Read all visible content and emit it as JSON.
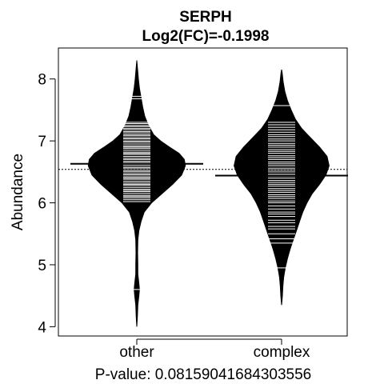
{
  "chart_data": {
    "type": "beanplot",
    "title": "SERPH",
    "subtitle": "Log2(FC)=-0.1998",
    "ylabel": "Abundance",
    "xlabel": "P-value: 0.08159041684303556",
    "ylim": [
      3.85,
      8.5
    ],
    "yticks": [
      "4",
      "5",
      "6",
      "7",
      "8"
    ],
    "overall_mean": 6.54,
    "categories": [
      "other",
      "complex"
    ],
    "groups": [
      {
        "name": "other",
        "mean": 6.63,
        "density": [
          [
            4.0,
            0.0
          ],
          [
            4.15,
            0.01
          ],
          [
            4.35,
            0.02
          ],
          [
            4.5,
            0.04
          ],
          [
            4.6,
            0.05
          ],
          [
            4.7,
            0.04
          ],
          [
            4.85,
            0.02
          ],
          [
            5.0,
            0.02
          ],
          [
            5.2,
            0.015
          ],
          [
            5.4,
            0.02
          ],
          [
            5.55,
            0.04
          ],
          [
            5.7,
            0.08
          ],
          [
            5.85,
            0.14
          ],
          [
            6.0,
            0.28
          ],
          [
            6.15,
            0.48
          ],
          [
            6.3,
            0.68
          ],
          [
            6.45,
            0.85
          ],
          [
            6.6,
            0.92
          ],
          [
            6.7,
            0.9
          ],
          [
            6.8,
            0.8
          ],
          [
            6.9,
            0.62
          ],
          [
            7.0,
            0.45
          ],
          [
            7.1,
            0.32
          ],
          [
            7.25,
            0.22
          ],
          [
            7.4,
            0.15
          ],
          [
            7.55,
            0.11
          ],
          [
            7.7,
            0.08
          ],
          [
            7.85,
            0.05
          ],
          [
            8.0,
            0.03
          ],
          [
            8.15,
            0.015
          ],
          [
            8.3,
            0.0
          ]
        ],
        "points": [
          4.6,
          6.02,
          6.05,
          6.08,
          6.1,
          6.12,
          6.15,
          6.18,
          6.2,
          6.22,
          6.25,
          6.28,
          6.3,
          6.32,
          6.35,
          6.38,
          6.4,
          6.42,
          6.45,
          6.47,
          6.5,
          6.52,
          6.55,
          6.57,
          6.6,
          6.62,
          6.65,
          6.67,
          6.7,
          6.72,
          6.75,
          6.78,
          6.8,
          6.82,
          6.85,
          6.88,
          6.9,
          6.92,
          6.95,
          6.98,
          7.0,
          7.03,
          7.05,
          7.08,
          7.1,
          7.13,
          7.15,
          7.18,
          7.2,
          7.23,
          7.25,
          7.28,
          7.3,
          7.68,
          7.72
        ]
      },
      {
        "name": "complex",
        "mean": 6.44,
        "density": [
          [
            4.35,
            0.0
          ],
          [
            4.5,
            0.015
          ],
          [
            4.65,
            0.025
          ],
          [
            4.8,
            0.04
          ],
          [
            4.95,
            0.07
          ],
          [
            5.1,
            0.11
          ],
          [
            5.25,
            0.16
          ],
          [
            5.4,
            0.22
          ],
          [
            5.55,
            0.28
          ],
          [
            5.7,
            0.34
          ],
          [
            5.85,
            0.4
          ],
          [
            6.0,
            0.48
          ],
          [
            6.15,
            0.58
          ],
          [
            6.3,
            0.72
          ],
          [
            6.45,
            0.84
          ],
          [
            6.6,
            0.9
          ],
          [
            6.75,
            0.86
          ],
          [
            6.9,
            0.72
          ],
          [
            7.05,
            0.55
          ],
          [
            7.2,
            0.38
          ],
          [
            7.35,
            0.26
          ],
          [
            7.5,
            0.18
          ],
          [
            7.65,
            0.11
          ],
          [
            7.8,
            0.06
          ],
          [
            7.95,
            0.03
          ],
          [
            8.1,
            0.01
          ],
          [
            8.15,
            0.0
          ]
        ],
        "points": [
          4.95,
          5.35,
          5.42,
          5.5,
          5.58,
          5.62,
          5.68,
          5.72,
          5.78,
          5.82,
          5.85,
          5.9,
          5.95,
          6.0,
          6.03,
          6.07,
          6.1,
          6.13,
          6.17,
          6.2,
          6.23,
          6.27,
          6.3,
          6.33,
          6.36,
          6.4,
          6.43,
          6.46,
          6.5,
          6.53,
          6.56,
          6.6,
          6.63,
          6.66,
          6.7,
          6.73,
          6.76,
          6.8,
          6.83,
          6.86,
          6.9,
          6.93,
          6.96,
          7.0,
          7.03,
          7.07,
          7.1,
          7.14,
          7.18,
          7.22,
          7.26,
          7.3,
          7.57
        ]
      }
    ]
  }
}
